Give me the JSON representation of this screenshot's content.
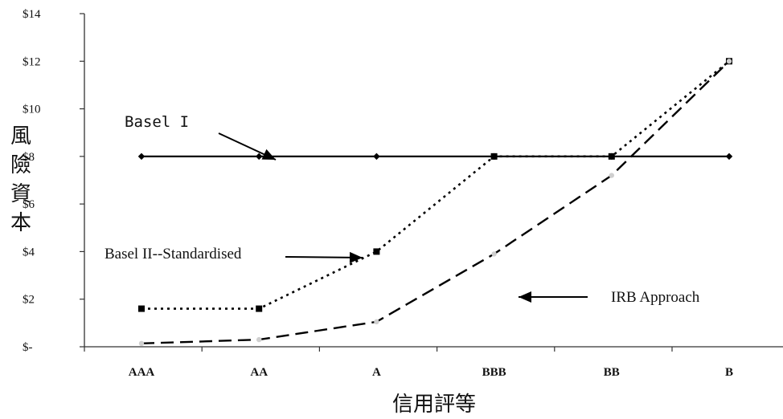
{
  "chart_data": {
    "type": "line",
    "categories": [
      "AAA",
      "AA",
      "A",
      "BBB",
      "BB",
      "B"
    ],
    "ylim": [
      0,
      14
    ],
    "yticks": [
      0,
      2,
      4,
      6,
      8,
      10,
      12,
      14
    ],
    "ytick_labels": [
      "$-",
      "$2",
      "$4",
      "$6",
      "$8",
      "$10",
      "$12",
      "$14"
    ],
    "ylabel": "風險資本",
    "xlabel": "信用評等",
    "grid": false,
    "series": [
      {
        "name": "Basel I",
        "values": [
          8,
          8,
          8,
          8,
          8,
          8
        ],
        "style": "solid",
        "color": "#000000"
      },
      {
        "name": "Basel II--Standardised",
        "values": [
          1.6,
          1.6,
          4,
          8,
          8,
          12
        ],
        "style": "dotted",
        "color": "#000000"
      },
      {
        "name": "IRB Approach",
        "values": [
          0.14,
          0.3,
          1.05,
          3.9,
          7.2,
          12
        ],
        "style": "dashed",
        "color": "#000000"
      }
    ],
    "annotations": [
      {
        "text": "Basel I",
        "points_to_series": 0
      },
      {
        "text": "Basel II--Standardised",
        "points_to_series": 1
      },
      {
        "text": "IRB Approach",
        "points_to_series": 2
      }
    ]
  }
}
